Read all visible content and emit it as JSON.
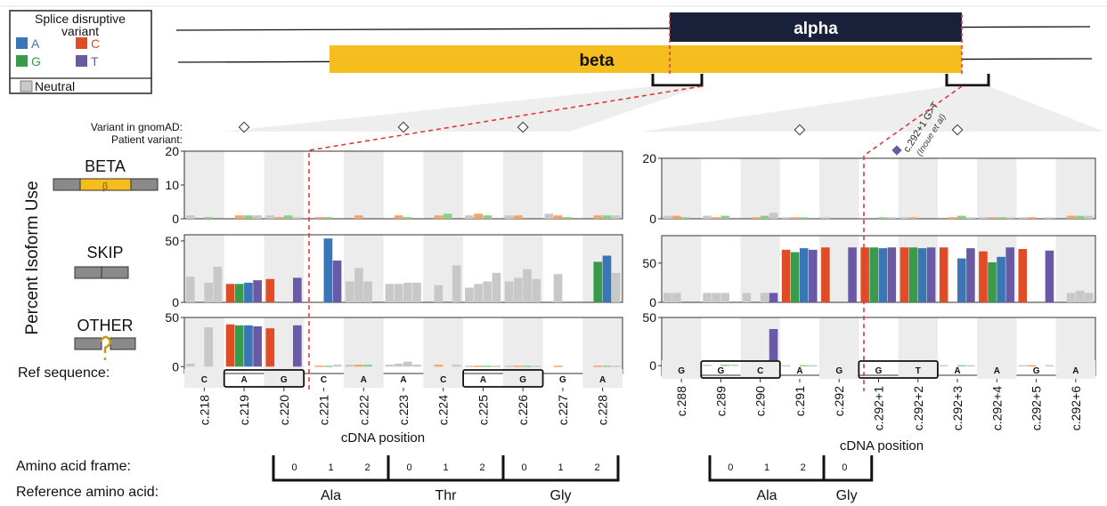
{
  "legend": {
    "title": "Splice disruptive variant",
    "title_line1": "Splice disruptive",
    "title_line2": "variant",
    "items": [
      {
        "label": "A",
        "color": "#3a76b5"
      },
      {
        "label": "C",
        "color": "#e04c26"
      },
      {
        "label": "G",
        "color": "#3a9a4b"
      },
      {
        "label": "T",
        "color": "#6a5aa6"
      }
    ],
    "neutral_label": "Neutral",
    "neutral_color": "#c8c8c8"
  },
  "isoforms": {
    "alpha": "alpha",
    "beta": "beta"
  },
  "annotations": {
    "gnomad_label": "Variant in gnomAD:",
    "patient_label": "Patient variant:",
    "patient_variant": "c.292+1 G>T",
    "patient_variant_ref": "(Inoue et al)"
  },
  "y_axis_label": "Percent Isoform Use",
  "row_labels": [
    "BETA",
    "SKIP",
    "OTHER"
  ],
  "beta_symbol": "β",
  "ref_sequence_label": "Ref sequence:",
  "x_axis_label": "cDNA position",
  "amino_acid_frame_label": "Amino acid frame:",
  "reference_aa_label": "Reference amino acid:",
  "left_frames": [
    "0",
    "1",
    "2",
    "0",
    "1",
    "2",
    "0",
    "1",
    "2"
  ],
  "left_amino_acids": [
    "Ala",
    "Thr",
    "Gly"
  ],
  "right_frames": [
    "0",
    "1",
    "2",
    "0"
  ],
  "right_amino_acids": [
    "Ala",
    "Gly"
  ],
  "chart_data": [
    {
      "type": "bar",
      "panel": "left",
      "x_label": "cDNA position",
      "categories": [
        "c.218",
        "c.219",
        "c.220",
        "c.221",
        "c.222",
        "c.223",
        "c.224",
        "c.225",
        "c.226",
        "c.227",
        "c.228"
      ],
      "ref_sequence": [
        "C",
        "A",
        "G",
        "C",
        "A",
        "A",
        "C",
        "A",
        "G",
        "G",
        "A"
      ],
      "gnomad_positions": [
        "c.219",
        "c.223",
        "c.226"
      ],
      "rows": [
        {
          "name": "BETA",
          "ylim": [
            0,
            20
          ],
          "ticks": [
            0,
            10,
            20
          ],
          "values": [
            [
              1,
              0,
              0.5,
              0
            ],
            [
              0,
              1,
              1,
              1
            ],
            [
              1,
              0.5,
              1,
              0.5
            ],
            [
              0,
              0.5,
              0.5,
              0
            ],
            [
              0,
              1,
              0,
              0
            ],
            [
              0,
              1,
              0.5,
              0
            ],
            [
              0,
              1,
              1.5,
              0
            ],
            [
              1,
              1.5,
              1,
              0
            ],
            [
              1,
              1,
              0,
              0
            ],
            [
              1.5,
              1,
              0.5,
              0
            ],
            [
              0,
              1,
              1,
              1
            ]
          ]
        },
        {
          "name": "SKIP",
          "ylim": [
            0,
            55
          ],
          "ticks": [
            0,
            50
          ],
          "values": [
            [
              21,
              0,
              16,
              29
            ],
            [
              15,
              15,
              16,
              18
            ],
            [
              19,
              0,
              0,
              20
            ],
            [
              0,
              0,
              52,
              34
            ],
            [
              17,
              28,
              17,
              0
            ],
            [
              15,
              15,
              16,
              16
            ],
            [
              0,
              14,
              0,
              30
            ],
            [
              12,
              15,
              17,
              24
            ],
            [
              17,
              20,
              27,
              19
            ],
            [
              0,
              23,
              0,
              0
            ],
            [
              0,
              33,
              38,
              24
            ]
          ]
        },
        {
          "name": "OTHER",
          "ylim": [
            -7,
            50
          ],
          "ticks": [
            0,
            50
          ],
          "values": [
            [
              3,
              0,
              40,
              0
            ],
            [
              43,
              42,
              42,
              41
            ],
            [
              39,
              0,
              0,
              42
            ],
            [
              0,
              1,
              1,
              2
            ],
            [
              2,
              2,
              2,
              0
            ],
            [
              2,
              3,
              5,
              2
            ],
            [
              0,
              2,
              0,
              2
            ],
            [
              1,
              1,
              1,
              1
            ],
            [
              1,
              1,
              1,
              1
            ],
            [
              0,
              1,
              0,
              0
            ],
            [
              0,
              1,
              1,
              1
            ]
          ]
        }
      ]
    },
    {
      "type": "bar",
      "panel": "right",
      "x_label": "cDNA position",
      "categories": [
        "c.288",
        "c.289",
        "c.290",
        "c.291",
        "c.292",
        "c.292+1",
        "c.292+2",
        "c.292+3",
        "c.292+4",
        "c.292+5",
        "c.292+6"
      ],
      "ref_sequence": [
        "G",
        "G",
        "C",
        "A",
        "G",
        "G",
        "T",
        "A",
        "A",
        "G",
        "A"
      ],
      "gnomad_positions": [
        "c.291",
        "c.292+3"
      ],
      "patient_variant_position": "c.292+1",
      "rows": [
        {
          "name": "BETA",
          "ylim": [
            0,
            20
          ],
          "ticks": [
            0,
            20
          ],
          "values": [
            [
              1,
              1,
              0.5,
              0
            ],
            [
              1,
              0.5,
              1,
              0
            ],
            [
              0,
              0.5,
              1,
              2
            ],
            [
              0.5,
              0.5,
              0.5,
              0
            ],
            [
              0.5,
              0,
              0,
              0
            ],
            [
              0,
              0,
              0.5,
              0.5
            ],
            [
              0.5,
              0.5,
              0,
              0
            ],
            [
              0,
              0.5,
              1,
              0.5
            ],
            [
              0.5,
              0.5,
              0.5,
              0.5
            ],
            [
              0.5,
              0.5,
              0,
              0.5
            ],
            [
              0,
              1,
              1,
              1
            ]
          ]
        },
        {
          "name": "SKIP",
          "ylim": [
            0,
            85
          ],
          "ticks": [
            0,
            50
          ],
          "values": [
            [
              12,
              12,
              0,
              0
            ],
            [
              12,
              12,
              12,
              0
            ],
            [
              12,
              0,
              12,
              12
            ],
            [
              67,
              64,
              69,
              67
            ],
            [
              70,
              0,
              0,
              70
            ],
            [
              70,
              70,
              69,
              70
            ],
            [
              70,
              70,
              69,
              70
            ],
            [
              70,
              0,
              56,
              69
            ],
            [
              65,
              51,
              58,
              70
            ],
            [
              68,
              0,
              0,
              66
            ],
            [
              0,
              12,
              15,
              12
            ]
          ]
        },
        {
          "name": "OTHER",
          "ylim": [
            -10,
            50
          ],
          "ticks": [
            0,
            50
          ],
          "values": [
            [
              1,
              1,
              0,
              0
            ],
            [
              1,
              0,
              1,
              1
            ],
            [
              1,
              0,
              0,
              38
            ],
            [
              0.5,
              0,
              0.5,
              0.5
            ],
            [
              0,
              0.5,
              0.5,
              0
            ],
            [
              0,
              0,
              0,
              0
            ],
            [
              0,
              0,
              0,
              0
            ],
            [
              0.5,
              0,
              0.5,
              0.5
            ],
            [
              0.5,
              0.5,
              0.5,
              0.5
            ],
            [
              0.5,
              0.5,
              0,
              0.5
            ],
            [
              1,
              2,
              1,
              2
            ]
          ]
        }
      ]
    }
  ]
}
